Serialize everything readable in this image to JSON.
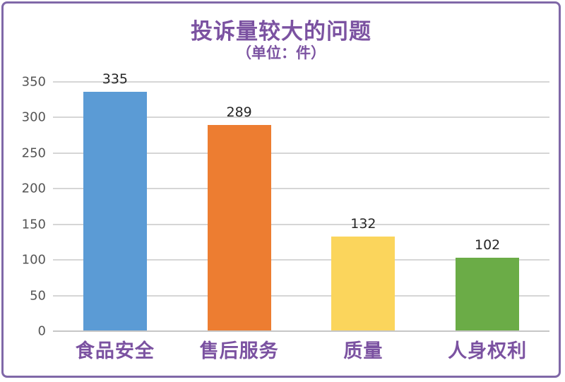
{
  "frame": {
    "border_color": "#8068A8",
    "background": "#FFFFFF"
  },
  "chart_data": {
    "type": "bar",
    "title": "投诉量较大的问题",
    "subtitle": "（单位：件）",
    "categories": [
      "食品安全",
      "售后服务",
      "质量",
      "人身权利"
    ],
    "values": [
      335,
      289,
      132,
      102
    ],
    "bar_colors": [
      "#5B9BD5",
      "#ED7D31",
      "#FBD55C",
      "#6BAC47"
    ],
    "xlabel": "",
    "ylabel": "",
    "ylim": [
      0,
      350
    ],
    "yticks": [
      0,
      50,
      100,
      150,
      200,
      250,
      300,
      350
    ],
    "grid": true,
    "legend": "none",
    "title_color": "#7B52A1",
    "subtitle_color": "#7B52A1",
    "category_label_color": "#7B52A1",
    "value_label_color": "#262626",
    "tick_label_color": "#555555",
    "gridline_color": "#D6D6D6"
  }
}
